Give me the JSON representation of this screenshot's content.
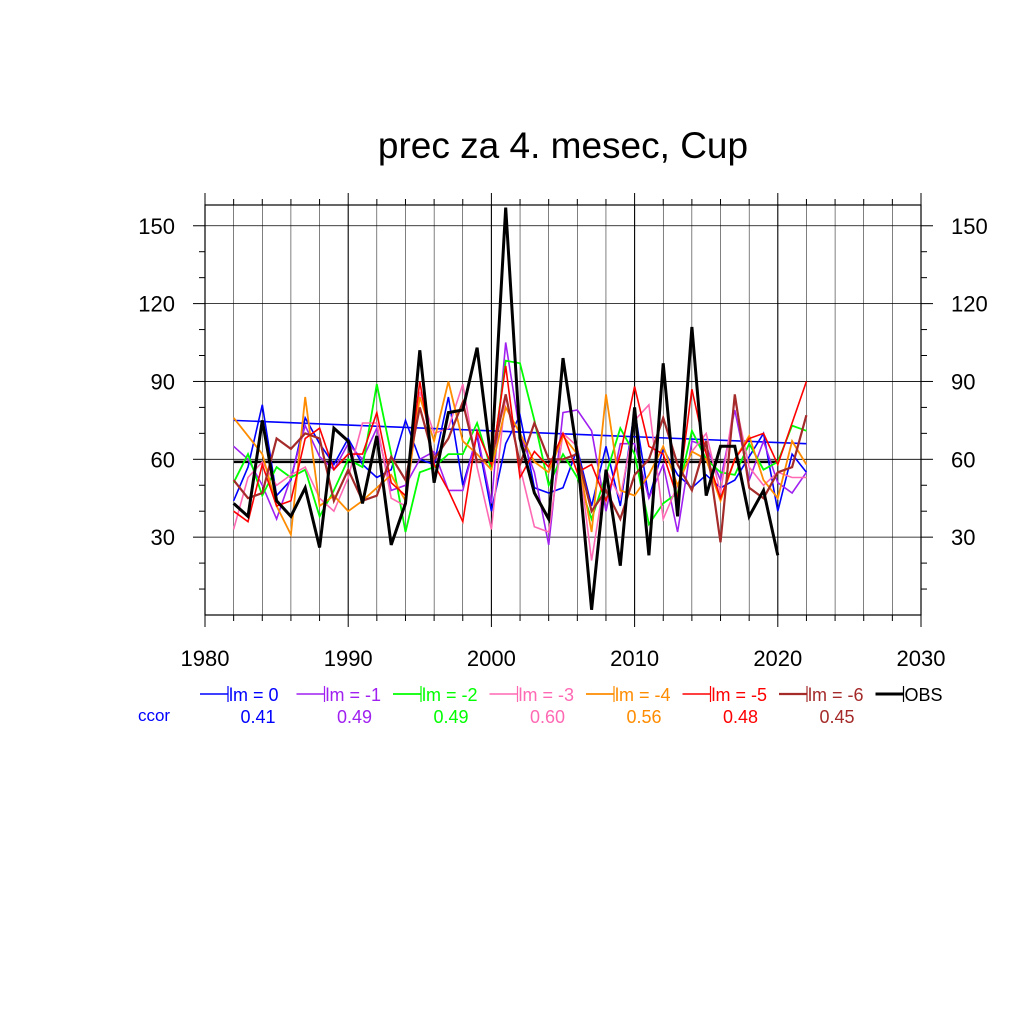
{
  "chart_data": {
    "type": "line",
    "title": "prec za 4. mesec, Cup",
    "xlabel": "",
    "ylabel": "",
    "xlim": [
      1980,
      2030
    ],
    "ylim": [
      0,
      158
    ],
    "x_ticks": [
      1980,
      1990,
      2000,
      2010,
      2020,
      2030
    ],
    "y_ticks": [
      30,
      60,
      90,
      120,
      150
    ],
    "grid": true,
    "legend_placement": "bottom",
    "ccor_label": "ccor",
    "x": [
      1982,
      1983,
      1984,
      1985,
      1986,
      1987,
      1988,
      1989,
      1990,
      1991,
      1992,
      1993,
      1994,
      1995,
      1996,
      1997,
      1998,
      1999,
      2000,
      2001,
      2002,
      2003,
      2004,
      2005,
      2006,
      2007,
      2008,
      2009,
      2010,
      2011,
      2012,
      2013,
      2014,
      2015,
      2016,
      2017,
      2018,
      2019,
      2020,
      2021,
      2022
    ],
    "series": [
      {
        "name": "lm = 0",
        "ccor": "0.41",
        "color": "#0000ff",
        "width": 1.6,
        "values": [
          44,
          57,
          81,
          46,
          52,
          76,
          66,
          58,
          68,
          58,
          53,
          56,
          75,
          60,
          58,
          84,
          50,
          69,
          40,
          66,
          77,
          49,
          47,
          49,
          64,
          42,
          65,
          42,
          79,
          45,
          64,
          54,
          49,
          54,
          49,
          52,
          61,
          70,
          40,
          62,
          55
        ]
      },
      {
        "name": "lm = -1",
        "ccor": "0.49",
        "color": "#a020f0",
        "width": 1.6,
        "values": [
          65,
          60,
          50,
          37,
          53,
          73,
          61,
          56,
          66,
          60,
          72,
          48,
          50,
          60,
          63,
          48,
          48,
          70,
          43,
          105,
          70,
          55,
          27,
          78,
          79,
          71,
          40,
          66,
          66,
          45,
          58,
          32,
          67,
          65,
          52,
          79,
          52,
          67,
          51,
          47,
          55
        ]
      },
      {
        "name": "lm = -2",
        "ccor": "0.49",
        "color": "#00ff00",
        "width": 1.8,
        "values": [
          51,
          62,
          46,
          57,
          53,
          56,
          38,
          48,
          60,
          57,
          89,
          62,
          32,
          55,
          57,
          62,
          62,
          74,
          56,
          98,
          97,
          75,
          50,
          62,
          53,
          37,
          54,
          72,
          62,
          35,
          43,
          47,
          71,
          60,
          55,
          54,
          66,
          56,
          59,
          73,
          71
        ]
      },
      {
        "name": "lm = -3",
        "ccor": "0.60",
        "color": "#ff69b4",
        "width": 1.6,
        "values": [
          33,
          53,
          59,
          50,
          54,
          57,
          45,
          40,
          53,
          74,
          74,
          45,
          42,
          86,
          70,
          72,
          89,
          57,
          33,
          85,
          57,
          34,
          32,
          70,
          65,
          21,
          56,
          45,
          75,
          81,
          37,
          50,
          63,
          70,
          47,
          83,
          57,
          50,
          55,
          53,
          53
        ]
      },
      {
        "name": "lm = -4",
        "ccor": "0.56",
        "color": "#ff8c00",
        "width": 1.8,
        "values": [
          76,
          69,
          62,
          42,
          31,
          84,
          42,
          46,
          40,
          44,
          49,
          54,
          44,
          84,
          67,
          90,
          67,
          62,
          56,
          80,
          70,
          59,
          55,
          69,
          62,
          32,
          85,
          48,
          46,
          54,
          65,
          50,
          63,
          60,
          44,
          60,
          69,
          52,
          45,
          67,
          58
        ]
      },
      {
        "name": "lm = -5",
        "ccor": "0.48",
        "color": "#ff0000",
        "width": 1.6,
        "values": [
          40,
          36,
          58,
          42,
          44,
          68,
          72,
          56,
          62,
          62,
          78,
          51,
          46,
          90,
          58,
          48,
          36,
          71,
          58,
          96,
          53,
          63,
          57,
          70,
          55,
          58,
          44,
          62,
          88,
          65,
          62,
          45,
          87,
          62,
          45,
          60,
          68,
          70,
          58,
          74,
          90
        ]
      },
      {
        "name": "lm = -6",
        "ccor": "0.45",
        "color": "#a52a2a",
        "width": 2.2,
        "values": [
          52,
          45,
          47,
          68,
          64,
          70,
          68,
          44,
          56,
          44,
          46,
          61,
          52,
          80,
          60,
          68,
          82,
          59,
          60,
          85,
          58,
          74,
          60,
          60,
          62,
          40,
          48,
          37,
          54,
          60,
          76,
          58,
          48,
          67,
          28,
          85,
          49,
          45,
          55,
          57,
          77
        ]
      },
      {
        "name": "OBS",
        "ccor": "",
        "color": "#000000",
        "width": 3.0,
        "values": [
          43,
          38,
          75,
          44,
          38,
          49,
          26,
          72,
          67,
          43,
          69,
          27,
          43,
          102,
          51,
          78,
          79,
          103,
          59,
          157,
          68,
          47,
          37,
          99,
          62,
          2,
          56,
          19,
          80,
          23,
          97,
          38,
          111,
          46,
          65,
          65,
          38,
          48,
          23,
          null,
          null
        ]
      }
    ],
    "trend_lines": [
      {
        "name": "lm = 0",
        "color": "#0000ff",
        "x": [
          1982,
          2022
        ],
        "y": [
          75,
          66
        ]
      },
      {
        "name": "OBS",
        "color": "#000000",
        "x": [
          1982,
          2020
        ],
        "y": [
          59,
          59
        ]
      }
    ]
  }
}
